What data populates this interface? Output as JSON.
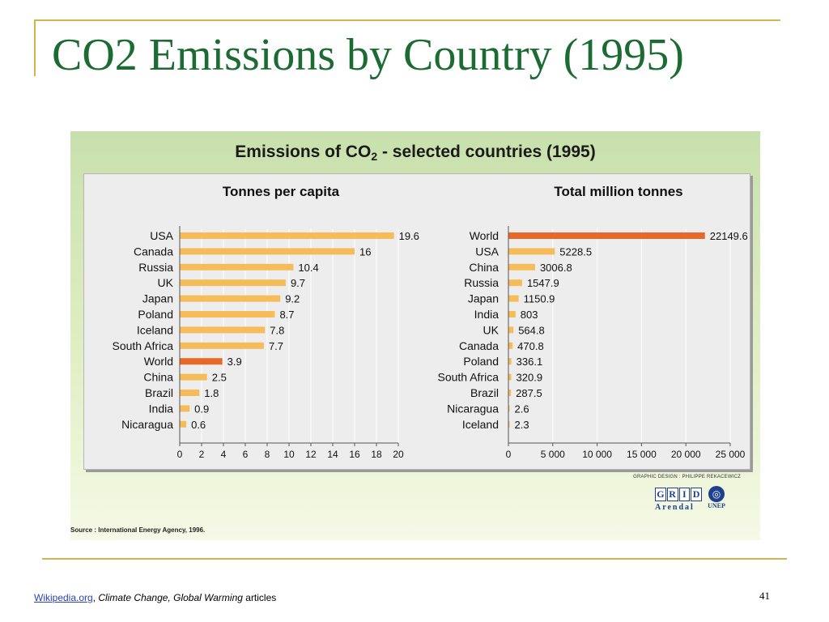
{
  "slide": {
    "title": "CO2 Emissions by Country (1995)",
    "page_number": "41",
    "footer": {
      "link_text": "Wikipedia.org",
      "separator": ",",
      "italic_text": "Climate Change, Global Warming",
      "suffix": "articles"
    }
  },
  "figure": {
    "title_main": "Emissions of CO",
    "title_sub": "2",
    "title_rest": " - selected countries (1995)",
    "credit": "GRAPHIC DESIGN : PHILIPPE REKACEWICZ",
    "source": "Source : International Energy Agency, 1996.",
    "logo_grid_letters": [
      "G",
      "R",
      "I",
      "D"
    ],
    "logo_grid_word": "Arendal",
    "logo_unep_word": "UNEP"
  },
  "colors": {
    "bar": "#f6bc5a",
    "highlight": "#e8682a",
    "title": "#1b6b32",
    "rule": "#d8b24a"
  },
  "chart_data": [
    {
      "type": "bar",
      "orientation": "horizontal",
      "title": "Tonnes per capita",
      "categories": [
        "USA",
        "Canada",
        "Russia",
        "UK",
        "Japan",
        "Poland",
        "Iceland",
        "South Africa",
        "World",
        "China",
        "Brazil",
        "India",
        "Nicaragua"
      ],
      "values": [
        19.6,
        16,
        10.4,
        9.7,
        9.2,
        8.7,
        7.8,
        7.7,
        3.9,
        2.5,
        1.8,
        0.9,
        0.6
      ],
      "value_labels": [
        "19.6",
        "16",
        "10.4",
        "9.7",
        "9.2",
        "8.7",
        "7.8",
        "7.7",
        "3.9",
        "2.5",
        "1.8",
        "0.9",
        "0.6"
      ],
      "highlight": "World",
      "xlim": [
        0,
        20
      ],
      "xticks": [
        "0",
        "2",
        "4",
        "6",
        "8",
        "10",
        "12",
        "14",
        "16",
        "18",
        "20"
      ],
      "xtick_values": [
        0,
        2,
        4,
        6,
        8,
        10,
        12,
        14,
        16,
        18,
        20
      ],
      "grid": true
    },
    {
      "type": "bar",
      "orientation": "horizontal",
      "title": "Total million tonnes",
      "categories": [
        "World",
        "USA",
        "China",
        "Russia",
        "Japan",
        "India",
        "UK",
        "Canada",
        "Poland",
        "South Africa",
        "Brazil",
        "Nicaragua",
        "Iceland"
      ],
      "values": [
        22149.6,
        5228.5,
        3006.8,
        1547.9,
        1150.9,
        803,
        564.8,
        470.8,
        336.1,
        320.9,
        287.5,
        2.6,
        2.3
      ],
      "value_labels": [
        "22149.6",
        "5228.5",
        "3006.8",
        "1547.9",
        "1150.9",
        "803",
        "564.8",
        "470.8",
        "336.1",
        "320.9",
        "287.5",
        "2.6",
        "2.3"
      ],
      "highlight": "World",
      "xlim": [
        0,
        25000
      ],
      "xticks": [
        "0",
        "5 000",
        "10 000",
        "15 000",
        "20 000",
        "25 000"
      ],
      "xtick_values": [
        0,
        5000,
        10000,
        15000,
        20000,
        25000
      ],
      "grid": true
    }
  ]
}
